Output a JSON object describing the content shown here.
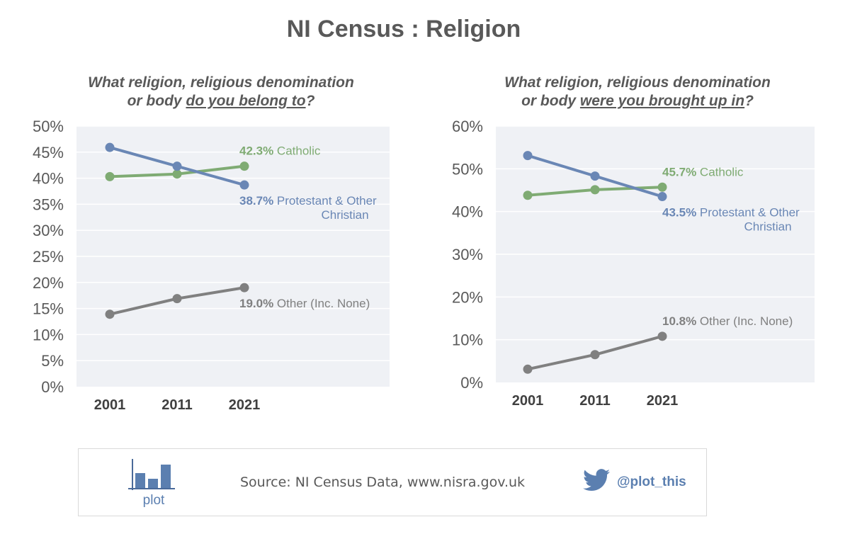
{
  "title": "NI Census : Religion",
  "colors": {
    "catholic": "#7fab73",
    "protestant": "#6a87b5",
    "other": "#808080",
    "plot_bg": "#eff1f5"
  },
  "footer": {
    "source": "Source: NI Census Data, www.nisra.gov.uk",
    "logo_text": "plot",
    "handle": "@plot_this",
    "icon": "twitter-bird-icon"
  },
  "chart_data": [
    {
      "type": "line",
      "question": {
        "line1": "What religion, religious denomination",
        "line2_pre": "or body ",
        "line2_u": "do you belong to",
        "line2_post": "?"
      },
      "categories": [
        "2001",
        "2011",
        "2021"
      ],
      "ylim": [
        0,
        50
      ],
      "yticks": [
        "0%",
        "5%",
        "10%",
        "15%",
        "20%",
        "25%",
        "30%",
        "35%",
        "40%",
        "45%",
        "50%"
      ],
      "grid": true,
      "series": [
        {
          "key": "catholic",
          "values": [
            40.3,
            40.8,
            42.3
          ],
          "value_label": "42.3%",
          "name_lines": [
            "Catholic"
          ]
        },
        {
          "key": "protestant",
          "values": [
            45.9,
            42.3,
            38.7
          ],
          "value_label": "38.7%",
          "name_lines": [
            "Protestant & Other",
            "Christian"
          ]
        },
        {
          "key": "other",
          "values": [
            13.9,
            16.9,
            19.0
          ],
          "value_label": "19.0%",
          "name_lines": [
            "Other (Inc. None)"
          ]
        }
      ]
    },
    {
      "type": "line",
      "question": {
        "line1": "What religion, religious denomination",
        "line2_pre": "or body ",
        "line2_u": "were you brought up in",
        "line2_post": "?"
      },
      "categories": [
        "2001",
        "2011",
        "2021"
      ],
      "ylim": [
        0,
        60
      ],
      "yticks": [
        "0%",
        "10%",
        "20%",
        "30%",
        "40%",
        "50%",
        "60%"
      ],
      "grid": true,
      "series": [
        {
          "key": "catholic",
          "values": [
            43.8,
            45.1,
            45.7
          ],
          "value_label": "45.7%",
          "name_lines": [
            "Catholic"
          ]
        },
        {
          "key": "protestant",
          "values": [
            53.1,
            48.3,
            43.5
          ],
          "value_label": "43.5%",
          "name_lines": [
            "Protestant & Other",
            "Christian"
          ]
        },
        {
          "key": "other",
          "values": [
            3.1,
            6.5,
            10.8
          ],
          "value_label": "10.8%",
          "name_lines": [
            "Other (Inc. None)"
          ]
        }
      ]
    }
  ]
}
